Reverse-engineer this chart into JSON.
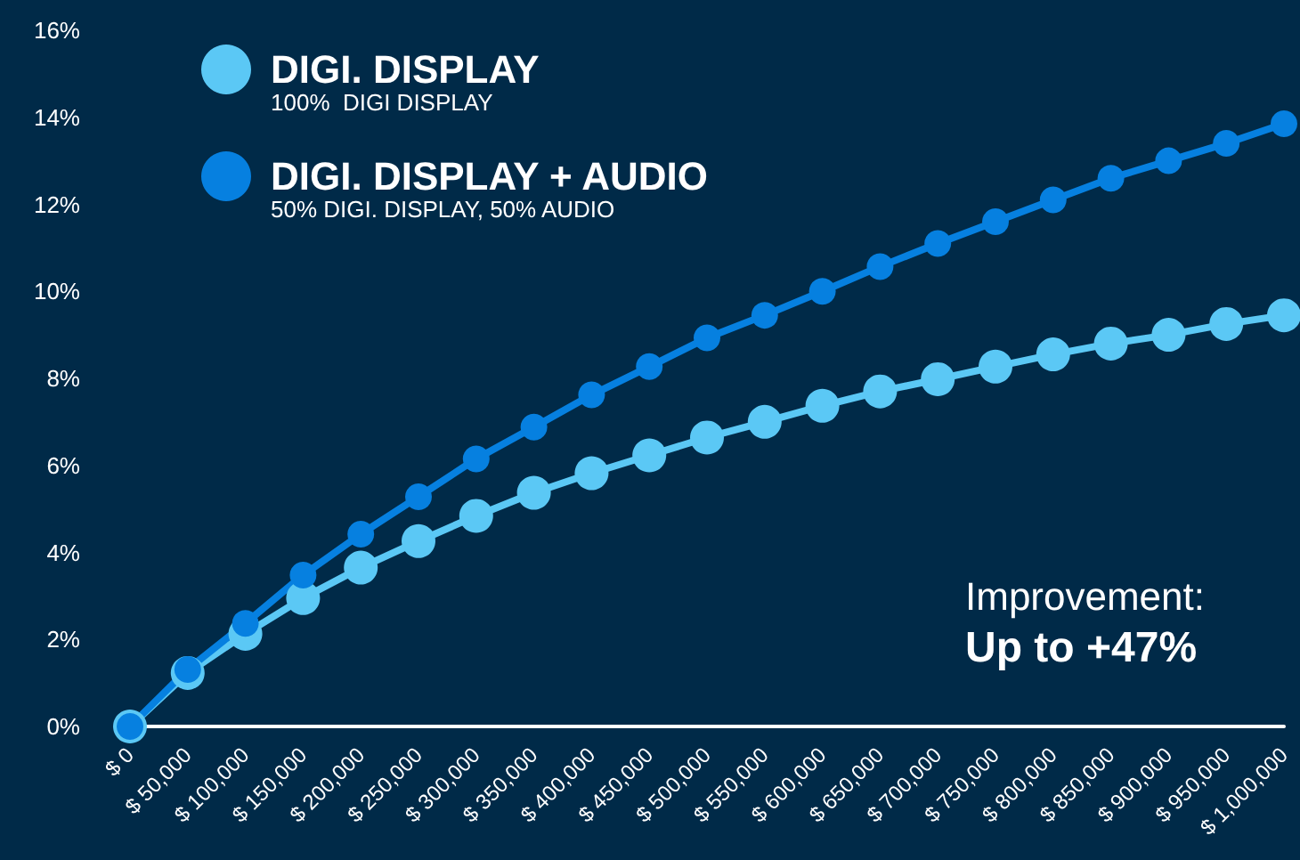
{
  "chart_data": {
    "type": "line",
    "categories": [
      "$ 0",
      "$ 50,000",
      "$ 100,000",
      "$ 150,000",
      "$ 200,000",
      "$ 250,000",
      "$ 300,000",
      "$ 350,000",
      "$ 400,000",
      "$ 450,000",
      "$ 500,000",
      "$ 550,000",
      "$ 600,000",
      "$ 650,000",
      "$ 700,000",
      "$ 750,000",
      "$ 800,000",
      "$ 850,000",
      "$ 900,000",
      "$ 950,000",
      "$ 1,000,000"
    ],
    "series": [
      {
        "name": "DIGI. DISPLAY",
        "color": "#5bc8f5",
        "values": [
          0,
          1.23,
          2.13,
          2.95,
          3.65,
          4.26,
          4.84,
          5.37,
          5.82,
          6.23,
          6.64,
          7.0,
          7.37,
          7.7,
          7.98,
          8.27,
          8.55,
          8.8,
          9.0,
          9.25,
          9.45
        ]
      },
      {
        "name": "DIGI. DISPLAY + AUDIO",
        "color": "#0680e0",
        "values": [
          0,
          1.31,
          2.37,
          3.48,
          4.42,
          5.28,
          6.15,
          6.88,
          7.62,
          8.27,
          8.93,
          9.45,
          10.0,
          10.57,
          11.1,
          11.6,
          12.1,
          12.6,
          13.0,
          13.4,
          13.85
        ]
      }
    ],
    "ylim": [
      0,
      16
    ],
    "yticks": [
      {
        "value": 0,
        "label": "0%"
      },
      {
        "value": 2,
        "label": "2%"
      },
      {
        "value": 4,
        "label": "4%"
      },
      {
        "value": 6,
        "label": "6%"
      },
      {
        "value": 8,
        "label": "8%"
      },
      {
        "value": 10,
        "label": "10%"
      },
      {
        "value": 12,
        "label": "12%"
      },
      {
        "value": 14,
        "label": "14%"
      },
      {
        "value": 16,
        "label": "16%"
      }
    ],
    "annotations": [
      "100%  DIGI DISPLAY",
      "50% DIGI. DISPLAY, 50% AUDIO",
      "Improvement:",
      "Up to +47%"
    ],
    "legend": "top left",
    "grid": false,
    "marker": "circle",
    "line_style": "solid"
  }
}
